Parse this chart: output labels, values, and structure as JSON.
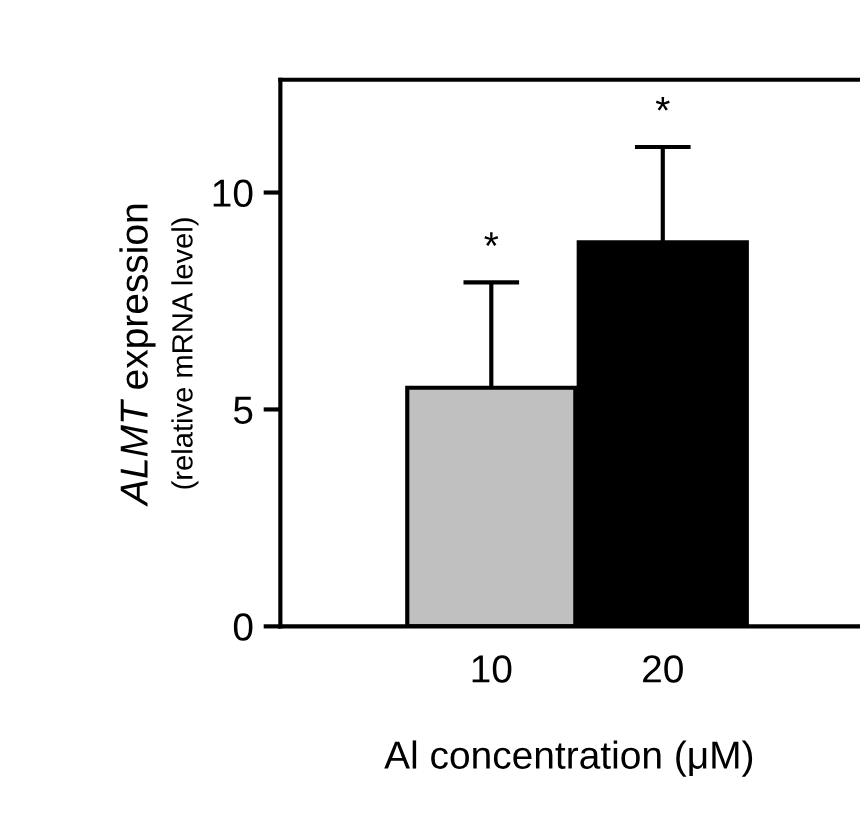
{
  "chart_data": {
    "type": "bar",
    "ylabel": "ALMT expression\n(relative mRNA level)",
    "xlabel": "Al concentration (μM)",
    "categories": [
      "10",
      "20"
    ],
    "values": [
      5.5,
      8.85
    ],
    "colors": [
      "#c0c0c0",
      "#000000"
    ],
    "errors": [
      [
        5.5,
        7.93
      ],
      [
        8.85,
        11.05
      ]
    ],
    "ylim": [
      0,
      12.6
    ],
    "yticks": [
      0,
      5,
      10
    ],
    "grid": false,
    "legend": false,
    "annotations": [
      "*",
      "*"
    ]
  }
}
